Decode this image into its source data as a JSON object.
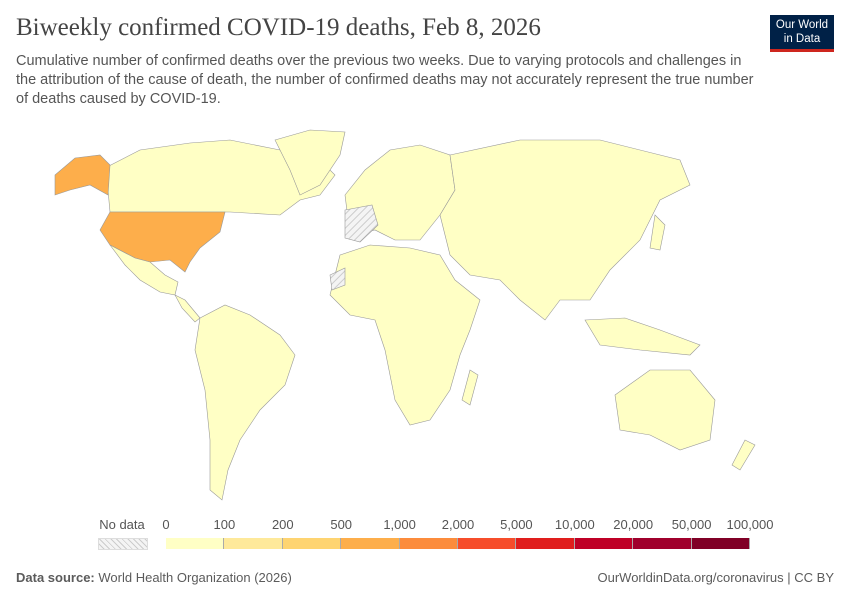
{
  "header": {
    "title": "Biweekly confirmed COVID-19 deaths, Feb 8, 2026",
    "subtitle": "Cumulative number of confirmed deaths over the previous two weeks. Due to varying protocols and challenges in the attribution of the cause of death, the number of confirmed deaths may not accurately represent the true number of deaths caused by COVID-19.",
    "logo": "Our World in Data"
  },
  "chart_data": {
    "type": "choropleth",
    "title": "Biweekly confirmed COVID-19 deaths, Feb 8, 2026",
    "legend": {
      "no_data_label": "No data",
      "bins": [
        "0",
        "100",
        "200",
        "500",
        "1,000",
        "2,000",
        "5,000",
        "10,000",
        "20,000",
        "50,000",
        "100,000"
      ],
      "colors": [
        "#ffffc5",
        "#fee99a",
        "#fed471",
        "#fdae4b",
        "#fc8c3c",
        "#f64d2b",
        "#e01e1d",
        "#bf0026",
        "#a0002c",
        "#800026"
      ]
    },
    "regions": [
      {
        "region": "United States",
        "bin": "500-1,000",
        "color": "#fdae4b"
      },
      {
        "region": "Other countries",
        "bin": "0-100",
        "color": "#ffffc5"
      },
      {
        "region": "Spain / Western Sahara area",
        "bin": "No data"
      }
    ]
  },
  "footer": {
    "source_label": "Data source:",
    "source": "World Health Organization (2026)",
    "url": "OurWorldinData.org/coronavirus | CC BY"
  }
}
